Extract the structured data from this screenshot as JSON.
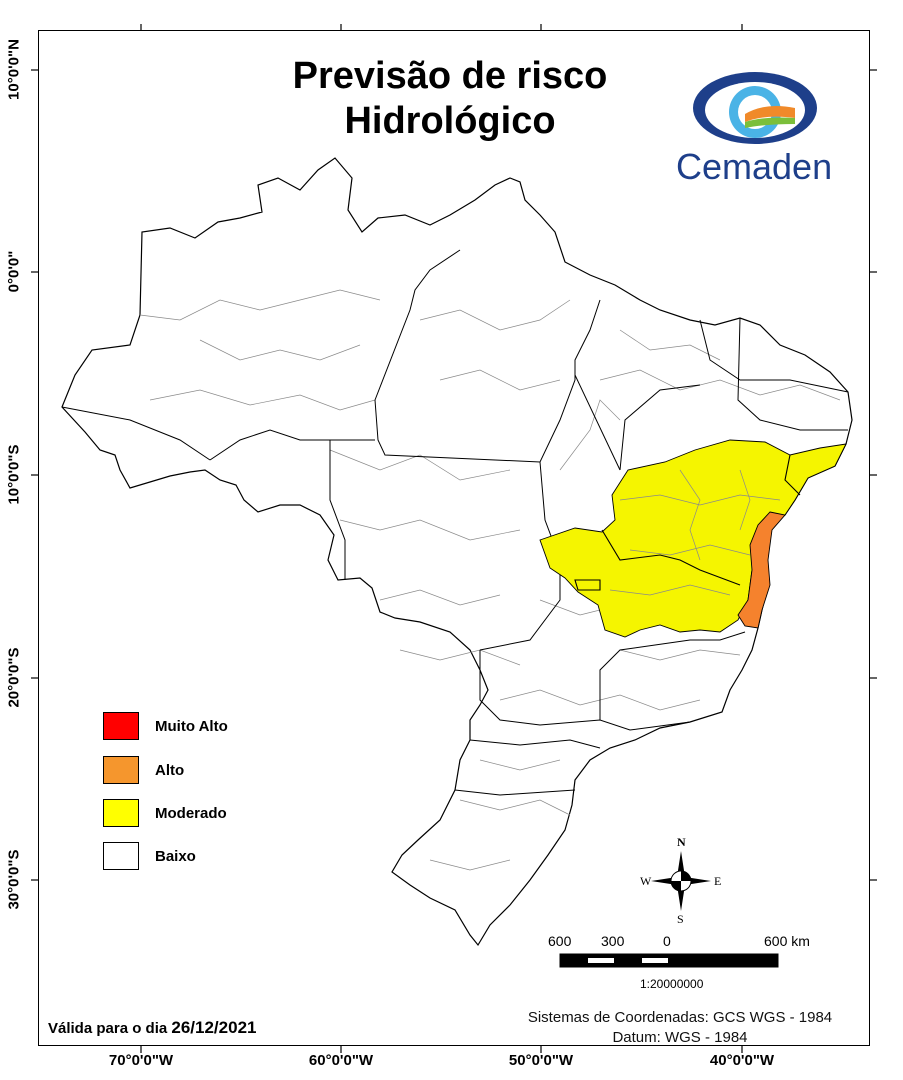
{
  "title": {
    "line1": "Previsão de risco",
    "line2": "Hidrológico"
  },
  "logo": {
    "text": "Cemaden",
    "icon": "cemaden-eye-logo"
  },
  "longitude_ticks": [
    "70°0'0\"W",
    "60°0'0\"W",
    "50°0'0\"W",
    "40°0'0\"W"
  ],
  "latitude_ticks": [
    "10°0'0\"N",
    "0°0'0\"",
    "10°0'0\"S",
    "20°0'0\"S",
    "30°0'0\"S"
  ],
  "legend": [
    {
      "label": "Muito Alto",
      "color": "#ff0000"
    },
    {
      "label": "Alto",
      "color": "#f5962d"
    },
    {
      "label": "Moderado",
      "color": "#ffff00"
    },
    {
      "label": "Baixo",
      "color": "#ffffff"
    }
  ],
  "risk_colors": {
    "moderado": "#f5f500",
    "alto": "#f5822d",
    "baixo": "#ffffff"
  },
  "compass": {
    "n": "N",
    "s": "S",
    "e": "E",
    "w": "W",
    "icon": "compass-rose-icon"
  },
  "scale_bar": {
    "labels": [
      "600",
      "300",
      "0",
      "600 km"
    ],
    "ratio": "1:20000000"
  },
  "coordinate_system": {
    "line1": "Sistemas de Coordenadas: GCS WGS - 1984",
    "line2": "Datum: WGS - 1984"
  },
  "validity": {
    "prefix": "Válida para o dia",
    "date": "26/12/2021"
  }
}
